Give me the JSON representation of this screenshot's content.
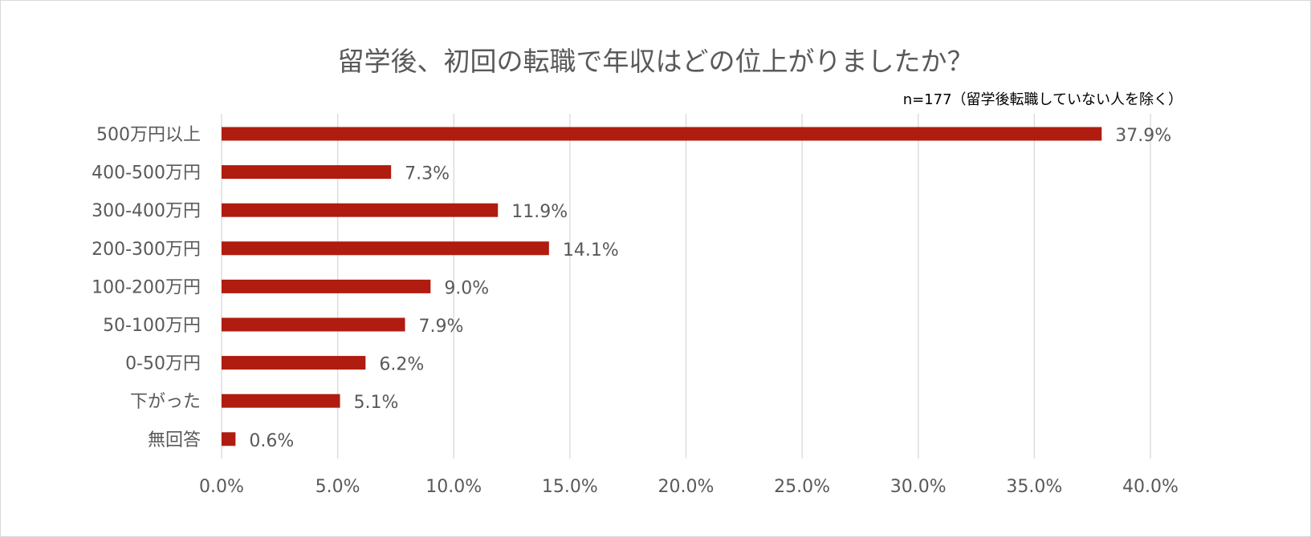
{
  "chart_data": {
    "type": "bar",
    "orientation": "horizontal",
    "title": "留学後、初回の転職で年収はどの位上がりましたか？",
    "subtitle": "n=177（留学後転職していない人を除く）",
    "categories": [
      "500万円以上",
      "400-500万円",
      "300-400万円",
      "200-300万円",
      "100-200万円",
      "50-100万円",
      "0-50万円",
      "下がった",
      "無回答"
    ],
    "values": [
      37.9,
      7.3,
      11.9,
      14.1,
      9.0,
      7.9,
      6.2,
      5.1,
      0.6
    ],
    "value_labels": [
      "37.9%",
      "7.3%",
      "11.9%",
      "14.1%",
      "9.0%",
      "7.9%",
      "6.2%",
      "5.1%",
      "0.6%"
    ],
    "xlim": [
      0,
      40
    ],
    "xticks": [
      "0.0%",
      "5.0%",
      "10.0%",
      "15.0%",
      "20.0%",
      "25.0%",
      "30.0%",
      "35.0%",
      "40.0%"
    ],
    "grid": true,
    "bar_color": "#b01c0f"
  }
}
